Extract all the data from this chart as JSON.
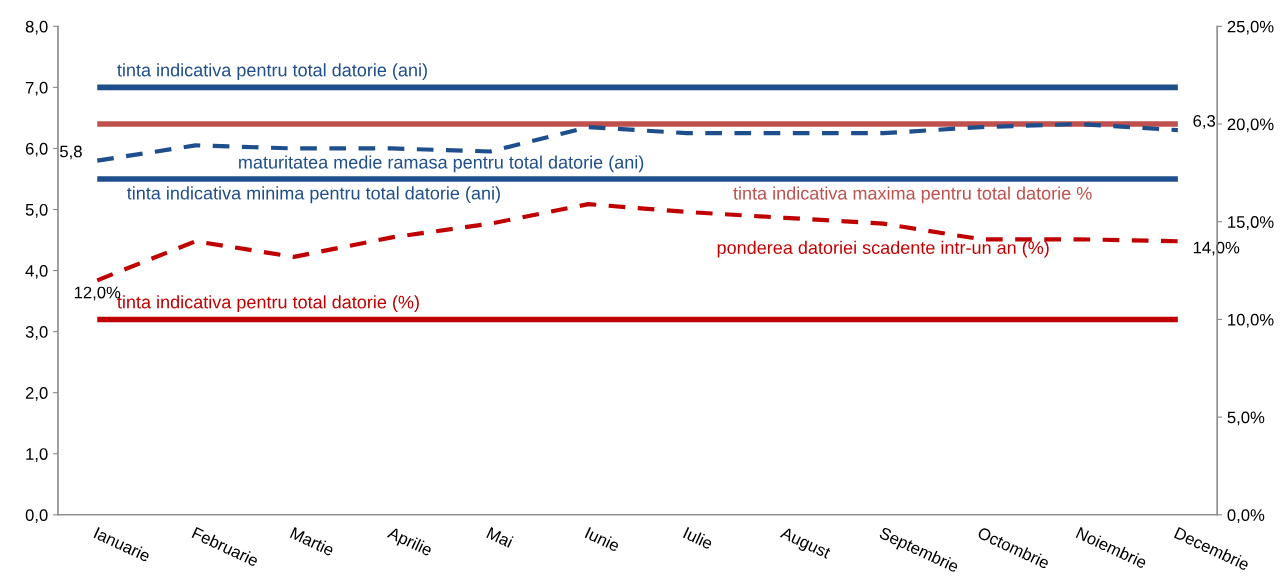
{
  "chart_data": {
    "type": "line",
    "categories": [
      "Ianuarie",
      "Februarie",
      "Martie",
      "Aprilie",
      "Mai",
      "Iunie",
      "Iulie",
      "August",
      "Septembrie",
      "Octombrie",
      "Noiembrie",
      "Decembrie"
    ],
    "series": [
      {
        "name": "maturitatea medie ramasa pentru total datorie (ani)",
        "color": "#1f4e8c",
        "values": [
          5.8,
          6.05,
          6.0,
          6.0,
          5.95,
          6.35,
          6.25,
          6.25,
          6.25,
          6.35,
          6.4,
          6.3
        ],
        "value_labels": [
          "5,8",
          null,
          null,
          null,
          null,
          null,
          null,
          null,
          null,
          null,
          null,
          "6,3"
        ]
      },
      {
        "name": "ponderea datoriei scadente intr-un an (%)",
        "color": "#c00000",
        "axis": "y2",
        "values": [
          12.0,
          14.0,
          13.2,
          14.2,
          14.9,
          15.9,
          15.5,
          15.2,
          14.9,
          14.1,
          14.1,
          14.0
        ],
        "value_labels": [
          "12,0%",
          null,
          null,
          null,
          null,
          null,
          null,
          null,
          null,
          null,
          null,
          "14,0%"
        ]
      }
    ],
    "line_style": "dashed",
    "marker": "none",
    "grid": false,
    "legend": false,
    "ylim": [
      0,
      8
    ],
    "yticks": [
      {
        "value": 0,
        "label": "0,0"
      },
      {
        "value": 1,
        "label": "1,0"
      },
      {
        "value": 2,
        "label": "2,0"
      },
      {
        "value": 3,
        "label": "3,0"
      },
      {
        "value": 4,
        "label": "4,0"
      },
      {
        "value": 5,
        "label": "5,0"
      },
      {
        "value": 6,
        "label": "6,0"
      },
      {
        "value": 7,
        "label": "7,0"
      },
      {
        "value": 8,
        "label": "8,0"
      }
    ],
    "y2lim": [
      0,
      25
    ],
    "y2ticks": [
      {
        "value": 0,
        "label": "0,0%"
      },
      {
        "value": 5,
        "label": "5,0%"
      },
      {
        "value": 10,
        "label": "10,0%"
      },
      {
        "value": 15,
        "label": "15,0%"
      },
      {
        "value": 20,
        "label": "20,0%"
      },
      {
        "value": 25,
        "label": "25,0%"
      }
    ],
    "ref_lines": [
      {
        "axis": "y",
        "value": 7.0,
        "label": "tinta indicativa pentru total datorie (ani)",
        "color": "#1f4e8c",
        "line_style": "solid"
      },
      {
        "axis": "y",
        "value": 5.5,
        "label": "tinta indicativa minima pentru total datorie (ani)",
        "color": "#1f4e8c",
        "line_style": "solid"
      },
      {
        "axis": "y2",
        "value": 20,
        "label": "tinta indicativa maxima pentru total datorie %",
        "color": "#c0504d",
        "line_style": "solid"
      },
      {
        "axis": "y2",
        "value": 10,
        "label": "tinta indicativa pentru total datorie (%)",
        "color": "#c00000",
        "line_style": "solid"
      }
    ]
  }
}
